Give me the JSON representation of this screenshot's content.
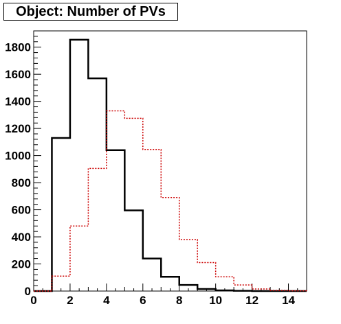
{
  "chart_data": {
    "type": "histogram",
    "title": "Object: Number of PVs",
    "xlim": [
      0,
      15
    ],
    "ylim": [
      0,
      1920
    ],
    "x_ticks": [
      0,
      2,
      4,
      6,
      8,
      10,
      12,
      14
    ],
    "y_ticks": [
      0,
      200,
      400,
      600,
      800,
      1000,
      1200,
      1400,
      1600,
      1800
    ],
    "bin_edges": [
      0,
      1,
      2,
      3,
      4,
      5,
      6,
      7,
      8,
      9,
      10,
      11,
      12,
      13,
      14,
      15
    ],
    "series": [
      {
        "style": "solid",
        "color": "#000000",
        "values": [
          0,
          1130,
          1855,
          1570,
          1040,
          595,
          240,
          105,
          45,
          15,
          5,
          2,
          0,
          0,
          0
        ]
      },
      {
        "style": "dashed",
        "color": "#cc0000",
        "values": [
          0,
          110,
          480,
          905,
          1330,
          1275,
          1045,
          690,
          380,
          210,
          105,
          45,
          15,
          5,
          2
        ]
      }
    ]
  }
}
